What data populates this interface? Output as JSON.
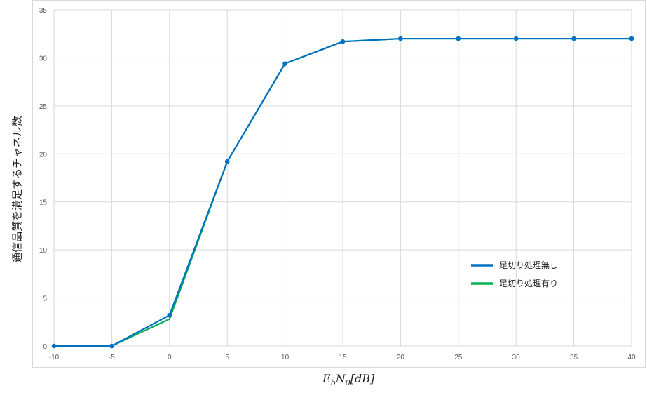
{
  "chart_data": {
    "type": "line",
    "x": [
      -10,
      -5,
      0,
      5,
      10,
      15,
      20,
      25,
      30,
      35,
      40
    ],
    "xticks": [
      "-10",
      "-5",
      "0",
      "5",
      "10",
      "15",
      "20",
      "25",
      "30",
      "35",
      "40"
    ],
    "yticks": [
      "0",
      "5",
      "10",
      "15",
      "20",
      "25",
      "30",
      "35"
    ],
    "xlim": [
      -10,
      40
    ],
    "ylim": [
      0,
      35
    ],
    "xlabel_base": "E",
    "xlabel_sub1": "b",
    "xlabel_mid": "N",
    "xlabel_sub2": "0",
    "xlabel_unit": "[dB]",
    "ylabel": "通信品質を満足するチャネル数",
    "grid": true,
    "legend_position": "right",
    "series": [
      {
        "name": "足切り処理無し",
        "color": "#0070c0",
        "values": [
          0,
          0,
          3.2,
          19.2,
          29.4,
          31.7,
          32,
          32,
          32,
          32,
          32
        ],
        "markers": true
      },
      {
        "name": "足切り処理有り",
        "color": "#00b050",
        "values": [
          0,
          0,
          2.8,
          19.2,
          29.4,
          31.7,
          32,
          32,
          32,
          32,
          32
        ],
        "markers": false
      }
    ]
  }
}
